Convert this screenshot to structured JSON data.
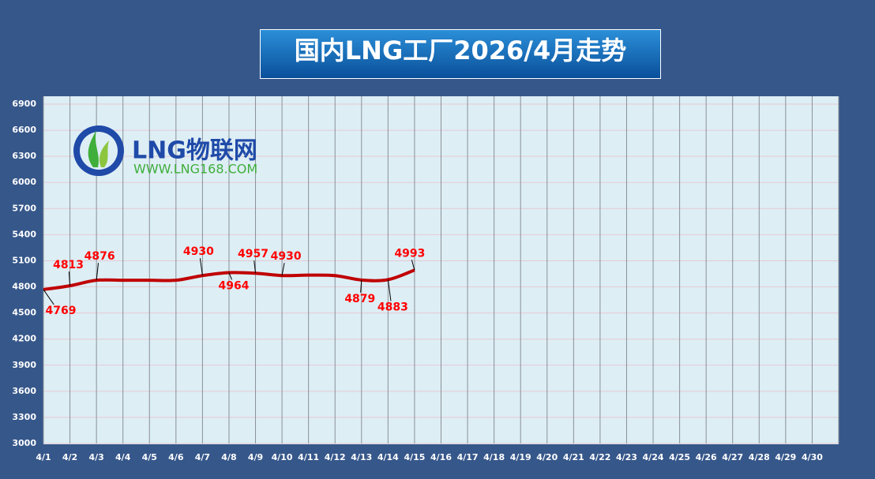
{
  "chart_data": {
    "type": "line",
    "title": "国内LNG工厂2026/4月走势",
    "logo": {
      "name": "LNG物联网",
      "url": "WWW.LNG168.COM"
    },
    "categories": [
      "4/1",
      "4/2",
      "4/3",
      "4/4",
      "4/5",
      "4/6",
      "4/7",
      "4/8",
      "4/9",
      "4/10",
      "4/11",
      "4/12",
      "4/13",
      "4/14",
      "4/15",
      "4/16",
      "4/17",
      "4/18",
      "4/19",
      "4/20",
      "4/21",
      "4/22",
      "4/23",
      "4/24",
      "4/25",
      "4/26",
      "4/27",
      "4/28",
      "4/29",
      "4/30"
    ],
    "series": [
      {
        "name": "国内LNG工厂",
        "color": "#c00000",
        "values": [
          4769,
          4813,
          4876,
          4876,
          4876,
          4876,
          4930,
          4964,
          4957,
          4930,
          4935,
          4930,
          4879,
          4883,
          4993,
          null,
          null,
          null,
          null,
          null,
          null,
          null,
          null,
          null,
          null,
          null,
          null,
          null,
          null,
          null
        ],
        "value_labels": [
          "4769",
          "4813",
          "4876",
          null,
          null,
          null,
          "4930",
          "4964",
          "4957",
          "4930",
          null,
          null,
          "4879",
          "4883",
          "4993",
          null,
          null,
          null,
          null,
          null,
          null,
          null,
          null,
          null,
          null,
          null,
          null,
          null,
          null,
          null
        ]
      }
    ],
    "ylim": [
      3000,
      6900
    ],
    "yticks": [
      3000,
      3300,
      3600,
      3900,
      4200,
      4500,
      4800,
      5100,
      5400,
      5700,
      6000,
      6300,
      6600,
      6900
    ],
    "grid": true
  }
}
